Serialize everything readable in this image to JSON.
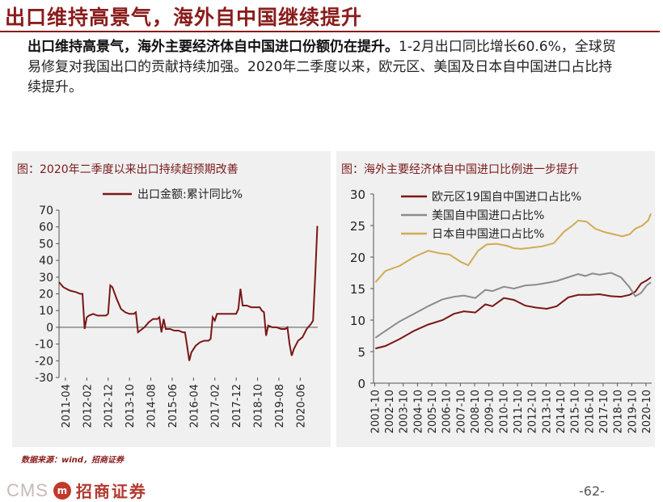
{
  "header": {
    "title": "出口维持高景气，海外自中国继续提升"
  },
  "summary": {
    "bold": "出口维持高景气，海外主要经济体自中国进口份额仍在提升。",
    "rest": "1-2月出口同比增长60.6%，全球贸易修复对我国出口的贡献持续加强。2020年二季度以来，欧元区、美国及日本自中国进口占比持续提升。"
  },
  "footer": {
    "source": "数据来源：wind，招商证券",
    "logo_cms": "CMS",
    "logo_mark": "m",
    "logo_text": "招商证券",
    "page": "-62-"
  },
  "colors": {
    "series_main": "#7b1616",
    "series_grey": "#8c8c8c",
    "series_gold": "#d1ab52",
    "title_red": "#8a1c1c"
  },
  "chart_data": [
    {
      "type": "line",
      "title": "图：2020年二季度以来出口持续超预期改善",
      "ylim": [
        -30,
        70
      ],
      "yticks": [
        -30,
        -20,
        -10,
        0,
        10,
        20,
        30,
        40,
        50,
        60,
        70
      ],
      "tick_labels": [
        "2011-04",
        "2012-02",
        "2012-12",
        "2013-10",
        "2014-08",
        "2015-06",
        "2016-04",
        "2017-02",
        "2017-12",
        "2018-10",
        "2019-08",
        "2020-06"
      ],
      "series": [
        {
          "name": "出口金额:累计同比%",
          "color": "#7b1616",
          "points": [
            [
              "2011-01",
              27
            ],
            [
              "2011-03",
              24
            ],
            [
              "2011-06",
              22
            ],
            [
              "2011-09",
              21
            ],
            [
              "2011-11",
              20
            ],
            [
              "2011-12",
              20
            ],
            [
              "2012-01",
              -1
            ],
            [
              "2012-02",
              6
            ],
            [
              "2012-03",
              7
            ],
            [
              "2012-05",
              8
            ],
            [
              "2012-07",
              7
            ],
            [
              "2012-09",
              7
            ],
            [
              "2012-11",
              7
            ],
            [
              "2012-12",
              8
            ],
            [
              "2013-01",
              25
            ],
            [
              "2013-02",
              24
            ],
            [
              "2013-04",
              17
            ],
            [
              "2013-06",
              11
            ],
            [
              "2013-08",
              9
            ],
            [
              "2013-10",
              8
            ],
            [
              "2013-12",
              8
            ],
            [
              "2014-01",
              9
            ],
            [
              "2014-02",
              -3
            ],
            [
              "2014-03",
              -2
            ],
            [
              "2014-05",
              0
            ],
            [
              "2014-07",
              3
            ],
            [
              "2014-09",
              5
            ],
            [
              "2014-11",
              5
            ],
            [
              "2014-12",
              6
            ],
            [
              "2015-01",
              -3
            ],
            [
              "2015-02",
              5
            ],
            [
              "2015-03",
              -1
            ],
            [
              "2015-05",
              -1
            ],
            [
              "2015-07",
              -2
            ],
            [
              "2015-09",
              -2
            ],
            [
              "2015-11",
              -3
            ],
            [
              "2015-12",
              -3
            ],
            [
              "2016-01",
              -11
            ],
            [
              "2016-02",
              -20
            ],
            [
              "2016-03",
              -15
            ],
            [
              "2016-05",
              -11
            ],
            [
              "2016-07",
              -9
            ],
            [
              "2016-09",
              -8
            ],
            [
              "2016-11",
              -8
            ],
            [
              "2016-12",
              -7
            ],
            [
              "2017-01",
              6
            ],
            [
              "2017-02",
              4
            ],
            [
              "2017-03",
              8
            ],
            [
              "2017-05",
              8
            ],
            [
              "2017-07",
              8
            ],
            [
              "2017-09",
              8
            ],
            [
              "2017-11",
              8
            ],
            [
              "2017-12",
              8
            ],
            [
              "2018-01",
              11
            ],
            [
              "2018-02",
              23
            ],
            [
              "2018-03",
              13
            ],
            [
              "2018-05",
              13
            ],
            [
              "2018-07",
              12
            ],
            [
              "2018-09",
              12
            ],
            [
              "2018-11",
              12
            ],
            [
              "2018-12",
              10
            ],
            [
              "2019-01",
              9
            ],
            [
              "2019-02",
              -5
            ],
            [
              "2019-03",
              1
            ],
            [
              "2019-05",
              0
            ],
            [
              "2019-07",
              0
            ],
            [
              "2019-09",
              -1
            ],
            [
              "2019-11",
              -1
            ],
            [
              "2019-12",
              0
            ],
            [
              "2020-01",
              -10
            ],
            [
              "2020-02",
              -17
            ],
            [
              "2020-03",
              -13
            ],
            [
              "2020-05",
              -8
            ],
            [
              "2020-07",
              -6
            ],
            [
              "2020-09",
              -1
            ],
            [
              "2020-11",
              2
            ],
            [
              "2020-12",
              4
            ],
            [
              "2021-01",
              30
            ],
            [
              "2021-02",
              60.6
            ]
          ]
        }
      ],
      "legend": "top"
    },
    {
      "type": "line",
      "title": "图：海外主要经济体自中国进口比例进一步提升",
      "ylim": [
        0,
        30
      ],
      "yticks": [
        0,
        5,
        10,
        15,
        20,
        25,
        30
      ],
      "tick_labels": [
        "2001-10",
        "2002-10",
        "2003-10",
        "2004-10",
        "2005-10",
        "2006-10",
        "2007-10",
        "2008-10",
        "2009-10",
        "2010-10",
        "2011-10",
        "2012-10",
        "2013-10",
        "2014-10",
        "2015-10",
        "2016-10",
        "2017-10",
        "2018-10",
        "2019-10",
        "2020-10"
      ],
      "series": [
        {
          "name": "欧元区19国自中国进口占比%",
          "color": "#7b1616",
          "points": [
            [
              2001.8,
              5.5
            ],
            [
              2002.5,
              5.9
            ],
            [
              2003.5,
              7.0
            ],
            [
              2004.5,
              8.3
            ],
            [
              2005.5,
              9.3
            ],
            [
              2006.5,
              10.0
            ],
            [
              2007.3,
              11.0
            ],
            [
              2008.0,
              11.4
            ],
            [
              2008.8,
              11.2
            ],
            [
              2009.5,
              12.5
            ],
            [
              2010.0,
              12.2
            ],
            [
              2010.8,
              13.5
            ],
            [
              2011.5,
              13.2
            ],
            [
              2012.3,
              12.3
            ],
            [
              2013.0,
              12.0
            ],
            [
              2013.8,
              11.8
            ],
            [
              2014.5,
              12.2
            ],
            [
              2015.3,
              13.6
            ],
            [
              2016.0,
              14.0
            ],
            [
              2016.8,
              14.0
            ],
            [
              2017.5,
              14.1
            ],
            [
              2018.3,
              13.8
            ],
            [
              2019.0,
              13.7
            ],
            [
              2019.6,
              14.0
            ],
            [
              2020.0,
              14.5
            ],
            [
              2020.4,
              15.8
            ],
            [
              2020.8,
              16.3
            ],
            [
              2021.1,
              16.8
            ]
          ]
        },
        {
          "name": "美国自中国进口占比%",
          "color": "#8c8c8c",
          "points": [
            [
              2001.8,
              7.2
            ],
            [
              2002.5,
              8.3
            ],
            [
              2003.5,
              9.8
            ],
            [
              2004.5,
              11.0
            ],
            [
              2005.5,
              12.2
            ],
            [
              2006.5,
              13.3
            ],
            [
              2007.3,
              13.7
            ],
            [
              2008.0,
              13.9
            ],
            [
              2008.8,
              13.5
            ],
            [
              2009.5,
              14.8
            ],
            [
              2010.0,
              14.6
            ],
            [
              2010.8,
              15.3
            ],
            [
              2011.5,
              15.0
            ],
            [
              2012.3,
              15.5
            ],
            [
              2013.0,
              15.6
            ],
            [
              2013.8,
              15.9
            ],
            [
              2014.5,
              16.2
            ],
            [
              2015.3,
              16.8
            ],
            [
              2016.0,
              17.3
            ],
            [
              2016.5,
              17.0
            ],
            [
              2017.0,
              17.4
            ],
            [
              2017.5,
              17.2
            ],
            [
              2018.3,
              17.5
            ],
            [
              2019.0,
              16.8
            ],
            [
              2019.6,
              15.2
            ],
            [
              2020.0,
              13.8
            ],
            [
              2020.4,
              14.3
            ],
            [
              2020.8,
              15.5
            ],
            [
              2021.1,
              16.0
            ]
          ]
        },
        {
          "name": "日本自中国进口占比%",
          "color": "#d1ab52",
          "points": [
            [
              2001.8,
              16.0
            ],
            [
              2002.5,
              17.8
            ],
            [
              2003.5,
              18.6
            ],
            [
              2004.5,
              20.0
            ],
            [
              2005.5,
              21.0
            ],
            [
              2006.3,
              20.6
            ],
            [
              2007.0,
              20.4
            ],
            [
              2007.8,
              19.2
            ],
            [
              2008.3,
              18.7
            ],
            [
              2009.0,
              21.0
            ],
            [
              2009.6,
              22.0
            ],
            [
              2010.3,
              22.1
            ],
            [
              2011.0,
              21.8
            ],
            [
              2011.5,
              21.4
            ],
            [
              2012.0,
              21.3
            ],
            [
              2012.8,
              21.5
            ],
            [
              2013.5,
              21.7
            ],
            [
              2014.3,
              22.2
            ],
            [
              2015.0,
              24.0
            ],
            [
              2015.6,
              25.0
            ],
            [
              2016.0,
              25.8
            ],
            [
              2016.6,
              25.6
            ],
            [
              2017.2,
              24.5
            ],
            [
              2017.8,
              24.0
            ],
            [
              2018.5,
              23.6
            ],
            [
              2019.1,
              23.3
            ],
            [
              2019.6,
              23.6
            ],
            [
              2020.0,
              24.5
            ],
            [
              2020.5,
              25.0
            ],
            [
              2020.9,
              25.8
            ],
            [
              2021.1,
              26.9
            ]
          ]
        }
      ],
      "legend": "top-left"
    }
  ]
}
